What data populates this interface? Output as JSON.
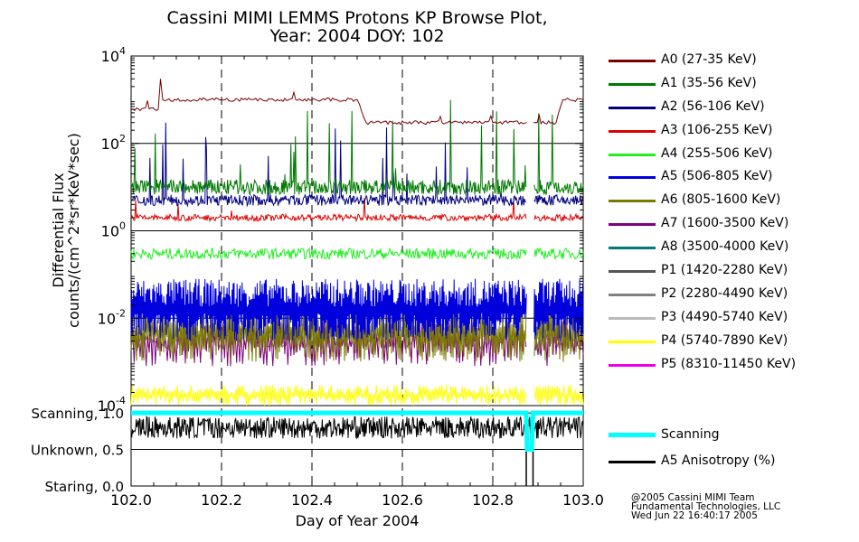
{
  "title_line1": "Cassini MIMI LEMMS Protons KP Browse Plot,",
  "title_line2": "Year: 2004 DOY: 102",
  "credits": [
    "@2005 Cassini MIMI Team",
    "Fundamental Technologies, LLC",
    "Wed Jun 22 16:40:17 2005"
  ],
  "colors": {
    "A0": "#7a0000",
    "A1": "#007a00",
    "A2": "#000080",
    "A3": "#dd0000",
    "A4": "#22ee22",
    "A5": "#0000dd",
    "A6": "#7a7a00",
    "A7": "#800080",
    "A8": "#007a7a",
    "P1": "#555555",
    "P2": "#808080",
    "P3": "#bbbbbb",
    "P4": "#ffff00",
    "P5": "#ee00ee",
    "scanning": "#00ffff",
    "anisotropy": "#000000"
  },
  "legend": [
    {
      "key": "A0",
      "label": "A0 (27-35 KeV)"
    },
    {
      "key": "A1",
      "label": "A1 (35-56 KeV)"
    },
    {
      "key": "A2",
      "label": "A2 (56-106 KeV)"
    },
    {
      "key": "A3",
      "label": "A3 (106-255 KeV)"
    },
    {
      "key": "A4",
      "label": "A4 (255-506 KeV)"
    },
    {
      "key": "A5",
      "label": "A5 (506-805 KeV)"
    },
    {
      "key": "A6",
      "label": "A6 (805-1600 KeV)"
    },
    {
      "key": "A7",
      "label": "A7 (1600-3500 KeV)"
    },
    {
      "key": "A8",
      "label": "A8 (3500-4000 KeV)"
    },
    {
      "key": "P1",
      "label": "P1 (1420-2280 KeV)"
    },
    {
      "key": "P2",
      "label": "P2 (2280-4490 KeV)"
    },
    {
      "key": "P3",
      "label": "P3 (4490-5740 KeV)"
    },
    {
      "key": "P4",
      "label": "P4 (5740-7890 KeV)"
    },
    {
      "key": "P5",
      "label": "P5 (8310-11450 KeV)"
    }
  ],
  "legend2": [
    {
      "key": "scanning",
      "label": "Scanning"
    },
    {
      "key": "anisotropy",
      "label": "A5 Anisotropy (%)"
    }
  ],
  "chart_data": [
    {
      "type": "line",
      "panel": "flux",
      "title": "Cassini MIMI LEMMS Protons KP Browse Plot, Year: 2004 DOY: 102",
      "ylabel_line1": "Differential Flux",
      "ylabel_line2": "counts/(cm^2*sr*KeV*sec)",
      "ylog": true,
      "ylim": [
        0.0001,
        10000
      ],
      "xlim": [
        102.0,
        103.0
      ],
      "y_ticks": [
        {
          "value": 10000,
          "base": "10",
          "exp": "4"
        },
        {
          "value": 100,
          "base": "10",
          "exp": "2"
        },
        {
          "value": 1,
          "base": "10",
          "exp": "0"
        },
        {
          "value": 0.01,
          "base": "10",
          "exp": "-2"
        },
        {
          "value": 0.0001,
          "base": "10",
          "exp": "-4"
        }
      ],
      "data_gap": [
        102.875,
        102.89
      ],
      "series": [
        {
          "name": "A0 (27-35 KeV)",
          "key": "A0",
          "x": [
            102.0,
            102.06,
            102.065,
            102.07,
            102.08,
            102.2,
            102.4,
            102.5,
            102.52,
            102.7,
            102.8,
            102.875,
            102.89,
            102.94,
            102.955,
            102.97,
            103.0
          ],
          "y": [
            600,
            600,
            3000,
            1000,
            1000,
            1000,
            1000,
            1000,
            300,
            300,
            300,
            300,
            300,
            300,
            1000,
            1000,
            1000
          ]
        },
        {
          "name": "A1 (35-56 KeV)",
          "key": "A1",
          "base": 10,
          "spikes_max": 1000
        },
        {
          "name": "A2 (56-106 KeV)",
          "key": "A2",
          "base": 5,
          "spikes_max": 300
        },
        {
          "name": "A3 (106-255 KeV)",
          "key": "A3",
          "base": 2
        },
        {
          "name": "A4 (255-506 KeV)",
          "key": "A4",
          "base": 0.3
        },
        {
          "name": "A5 (506-805 KeV)",
          "key": "A5",
          "range": [
            0.003,
            0.08
          ]
        },
        {
          "name": "A6 (805-1600 KeV)",
          "key": "A6",
          "range": [
            0.001,
            0.02
          ]
        },
        {
          "name": "A7 (1600-3500 KeV)",
          "key": "A7",
          "range": [
            0.0008,
            0.01
          ]
        },
        {
          "name": "P2 (2280-4490 KeV)",
          "key": "P2",
          "base": 0.003
        },
        {
          "name": "P4 (5740-7890 KeV)",
          "key": "P4",
          "range": [
            0.0001,
            0.0003
          ]
        }
      ]
    },
    {
      "type": "line",
      "panel": "scanning",
      "xlabel": "Day of Year 2004",
      "xlim": [
        102.0,
        103.0
      ],
      "x_ticks": [
        "102.0",
        "102.2",
        "102.4",
        "102.6",
        "102.8",
        "103.0"
      ],
      "y_ticks": [
        {
          "value": 1.0,
          "label": "Scanning, 1.0"
        },
        {
          "value": 0.5,
          "label": "Unknown, 0.5"
        },
        {
          "value": 0.0,
          "label": "Staring, 0.0"
        }
      ],
      "ylim": [
        0,
        1.1
      ],
      "series": [
        {
          "name": "Scanning",
          "key": "scanning",
          "x": [
            102.0,
            102.874,
            102.876,
            102.886,
            102.889,
            103.0
          ],
          "y": [
            1.0,
            1.0,
            0.5,
            0.5,
            1.0,
            1.0
          ]
        },
        {
          "name": "A5 Anisotropy (%)",
          "key": "anisotropy",
          "base": 0.8,
          "noise": 0.15
        }
      ]
    }
  ]
}
